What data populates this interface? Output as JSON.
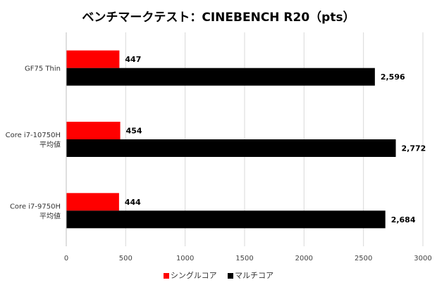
{
  "chart_data": {
    "type": "bar",
    "orientation": "horizontal",
    "title": "ベンチマークテスト：CINEBENCH R20（pts）",
    "categories": [
      [
        "GF75 Thin"
      ],
      [
        "Core i7-10750H",
        "平均値"
      ],
      [
        "Core i7-9750H",
        "平均値"
      ]
    ],
    "series": [
      {
        "name": "シングルコア",
        "color": "#ff0000",
        "values": [
          447,
          454,
          444
        ],
        "labels": [
          "447",
          "454",
          "444"
        ]
      },
      {
        "name": "マルチコア",
        "color": "#000000",
        "values": [
          2596,
          2772,
          2684
        ],
        "labels": [
          "2,596",
          "2,772",
          "2,684"
        ]
      }
    ],
    "xlim": [
      0,
      3000
    ],
    "xticks": [
      0,
      500,
      1000,
      1500,
      2000,
      2500,
      3000
    ],
    "grid": true,
    "legend_position": "bottom"
  }
}
